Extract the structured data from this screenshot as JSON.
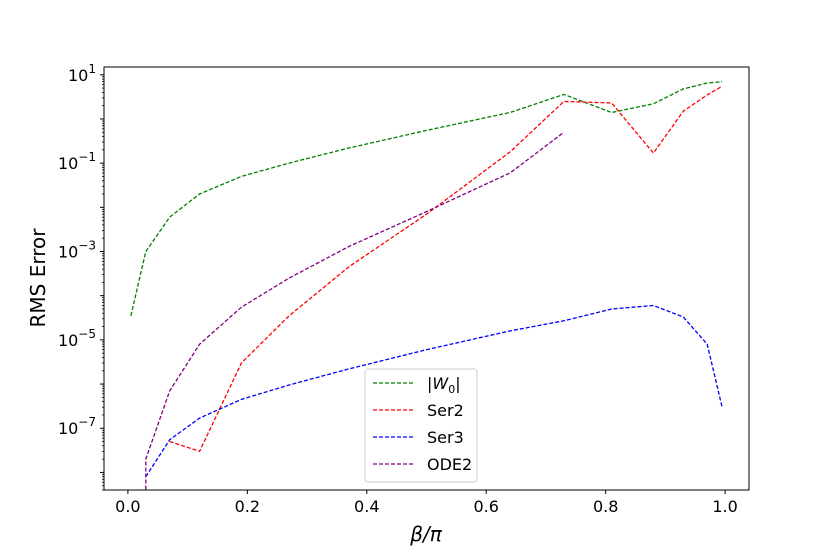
{
  "chart_data": {
    "type": "line",
    "title": "",
    "xlabel": "β/π",
    "ylabel": "RMS Error",
    "xlim": [
      -0.04,
      1.04
    ],
    "ylim": [
      4e-09,
      15
    ],
    "yscale": "log",
    "grid": false,
    "legend_position": "bottom-center",
    "x_ticks": [
      {
        "value": 0.0,
        "label": "0.0"
      },
      {
        "value": 0.2,
        "label": "0.2"
      },
      {
        "value": 0.4,
        "label": "0.4"
      },
      {
        "value": 0.6,
        "label": "0.6"
      },
      {
        "value": 0.8,
        "label": "0.8"
      },
      {
        "value": 1.0,
        "label": "1.0"
      }
    ],
    "y_ticks": [
      {
        "value": 10,
        "base": "10",
        "exp": "1"
      },
      {
        "value": 0.1,
        "base": "10",
        "exp": "−1"
      },
      {
        "value": 0.001,
        "base": "10",
        "exp": "−3"
      },
      {
        "value": 1e-05,
        "base": "10",
        "exp": "−5"
      },
      {
        "value": 1e-07,
        "base": "10",
        "exp": "−7"
      }
    ],
    "series": [
      {
        "name": "|W0|",
        "legend_main": "|W",
        "legend_sub": "0",
        "legend_tail": "|",
        "color": "#008000",
        "x": [
          0.005,
          0.03,
          0.07,
          0.12,
          0.19,
          0.27,
          0.37,
          0.5,
          0.64,
          0.73,
          0.81,
          0.88,
          0.93,
          0.97,
          0.995
        ],
        "y": [
          3.5e-05,
          0.001,
          0.006,
          0.02,
          0.05,
          0.1,
          0.22,
          0.55,
          1.4,
          3.6,
          1.4,
          2.2,
          4.8,
          6.5,
          7.0
        ]
      },
      {
        "name": "Ser2",
        "color": "#ff0000",
        "x": [
          0.07,
          0.12,
          0.19,
          0.27,
          0.37,
          0.5,
          0.64,
          0.73,
          0.81,
          0.88,
          0.93,
          0.97,
          0.995
        ],
        "y": [
          5e-08,
          3e-08,
          3e-06,
          3.5e-05,
          0.00045,
          0.007,
          0.18,
          2.5,
          2.3,
          0.17,
          1.5,
          3.5,
          5.5
        ]
      },
      {
        "name": "Ser3",
        "color": "#0000ff",
        "x": [
          0.03,
          0.07,
          0.12,
          0.19,
          0.27,
          0.37,
          0.5,
          0.64,
          0.73,
          0.81,
          0.88,
          0.93,
          0.97,
          0.995
        ],
        "y": [
          8e-09,
          5.5e-08,
          1.7e-07,
          4.5e-07,
          9.5e-07,
          2.2e-06,
          6e-06,
          1.6e-05,
          2.7e-05,
          5e-05,
          6e-05,
          3.3e-05,
          8e-06,
          3e-07
        ]
      },
      {
        "name": "ODE2",
        "color": "#800080",
        "x": [
          0.03,
          0.03,
          0.07,
          0.12,
          0.19,
          0.27,
          0.37,
          0.5,
          0.64,
          0.73
        ],
        "y": [
          3e-09,
          2e-08,
          7e-07,
          8e-06,
          5.5e-05,
          0.00025,
          0.0013,
          0.008,
          0.06,
          0.5
        ]
      }
    ]
  }
}
